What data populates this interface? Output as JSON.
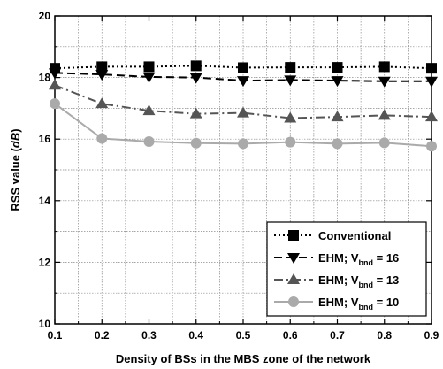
{
  "chart_data": {
    "type": "line",
    "xlabel": "Density of BSs in the MBS zone of the network",
    "ylabel_prefix": "RSS value (",
    "ylabel_unit": "dB",
    "ylabel_suffix": ")",
    "xlim": [
      0.1,
      0.9
    ],
    "ylim": [
      10,
      20
    ],
    "x": [
      0.1,
      0.2,
      0.3,
      0.4,
      0.5,
      0.6,
      0.7,
      0.8,
      0.9
    ],
    "xticks": [
      "0.1",
      "0.2",
      "0.3",
      "0.4",
      "0.5",
      "0.6",
      "0.7",
      "0.8",
      "0.9"
    ],
    "yticks": [
      "10",
      "12",
      "14",
      "16",
      "18",
      "20"
    ],
    "grid": true,
    "legend_position": "bottom-right",
    "series": [
      {
        "name": "Conventional",
        "legend_main": "Conventional",
        "legend_sub": "",
        "legend_tail": "",
        "marker": "square",
        "line": "dotted",
        "color": "#000000",
        "values": [
          18.3,
          18.35,
          18.35,
          18.38,
          18.32,
          18.33,
          18.33,
          18.35,
          18.3
        ]
      },
      {
        "name": "EHM; V_bnd = 16",
        "legend_main": "EHM; V",
        "legend_sub": "bnd",
        "legend_tail": " = 16",
        "marker": "triangle-down",
        "line": "dashed",
        "color": "#000000",
        "values": [
          18.15,
          18.1,
          18.02,
          18.0,
          17.9,
          17.92,
          17.9,
          17.88,
          17.88
        ]
      },
      {
        "name": "EHM; V_bnd = 13",
        "legend_main": "EHM; V",
        "legend_sub": "bnd",
        "legend_tail": " = 13",
        "marker": "triangle-up",
        "line": "dashdot",
        "color": "#555555",
        "values": [
          17.75,
          17.15,
          16.92,
          16.82,
          16.85,
          16.68,
          16.72,
          16.77,
          16.72
        ]
      },
      {
        "name": "EHM; V_bnd = 10",
        "legend_main": "EHM; V",
        "legend_sub": "bnd",
        "legend_tail": " = 10",
        "marker": "circle",
        "line": "solid",
        "color": "#aaaaaa",
        "values": [
          17.15,
          16.02,
          15.92,
          15.87,
          15.85,
          15.9,
          15.85,
          15.88,
          15.77
        ]
      }
    ]
  }
}
